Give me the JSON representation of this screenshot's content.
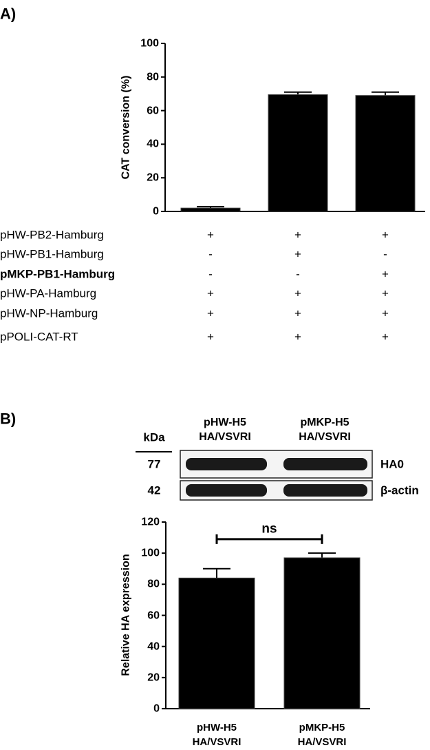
{
  "chart_data": [
    {
      "type": "bar",
      "panel_label": "A)",
      "y_label": "CAT conversion (%)",
      "categories": [
        null,
        null,
        null
      ],
      "values": [
        2,
        69.5,
        69
      ],
      "errors": [
        0.8,
        1.5,
        2
      ],
      "color": "#000000",
      "ylim": [
        0,
        100
      ],
      "yticks": [
        0,
        20,
        40,
        60,
        80,
        100
      ],
      "condition_table": [
        {
          "label": "pHW-PB2-Hamburg",
          "bold": false,
          "cells": [
            "+",
            "+",
            "+"
          ]
        },
        {
          "label": "pHW-PB1-Hamburg",
          "bold": false,
          "cells": [
            "-",
            "+",
            "-"
          ]
        },
        {
          "label": "pMKP-PB1-Hamburg",
          "bold": true,
          "cells": [
            "-",
            "-",
            "+"
          ]
        },
        {
          "label": "pHW-PA-Hamburg",
          "bold": false,
          "cells": [
            "+",
            "+",
            "+"
          ]
        },
        {
          "label": "pHW-NP-Hamburg",
          "bold": false,
          "cells": [
            "+",
            "+",
            "+"
          ]
        },
        {
          "label": "pPOLI-CAT-RT",
          "bold": false,
          "cells": [
            "+",
            "+",
            "+"
          ]
        }
      ]
    },
    {
      "type": "bar",
      "panel_label": "B)",
      "y_label": "Relative HA expression",
      "categories": [
        "pHW-H5\nHA/VSVRI",
        "pMKP-H5\nHA/VSVRI"
      ],
      "values": [
        84,
        97
      ],
      "errors": [
        6,
        3
      ],
      "color": "#000000",
      "ylim": [
        0,
        120
      ],
      "yticks": [
        0,
        20,
        40,
        60,
        80,
        100,
        120
      ],
      "significance": {
        "label": "ns",
        "value": 109
      },
      "blot": {
        "marker_header": "kDa",
        "markers": [
          77,
          42
        ],
        "bands": [
          "HA0",
          "β-actin"
        ],
        "lanes": [
          "pHW-H5\nHA/VSVRI",
          "pMKP-H5\nHA/VSVRI"
        ]
      }
    }
  ]
}
